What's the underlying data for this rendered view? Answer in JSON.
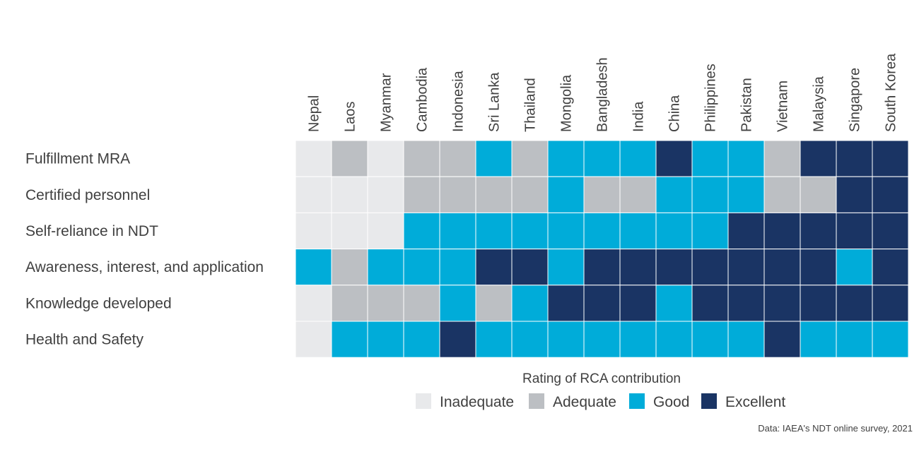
{
  "chart_data": {
    "type": "heatmap",
    "title": "",
    "columns": [
      "Nepal",
      "Laos",
      "Myanmar",
      "Cambodia",
      "Indonesia",
      "Sri Lanka",
      "Thailand",
      "Mongolia",
      "Bangladesh",
      "India",
      "China",
      "Philippines",
      "Pakistan",
      "Vietnam",
      "Malaysia",
      "Singapore",
      "South Korea"
    ],
    "rows": [
      "Fulfillment MRA",
      "Certified personnel",
      "Self-reliance in NDT",
      "Awareness, interest, and application",
      "Knowledge developed",
      "Health and Safety"
    ],
    "levels": [
      "Inadequate",
      "Adequate",
      "Good",
      "Excellent"
    ],
    "level_colors": [
      "#e8e9eb",
      "#bcbfc3",
      "#00acd9",
      "#1a3464"
    ],
    "values": [
      [
        0,
        1,
        0,
        1,
        1,
        2,
        1,
        2,
        2,
        2,
        3,
        2,
        2,
        1,
        3,
        3,
        3
      ],
      [
        0,
        0,
        0,
        1,
        1,
        1,
        1,
        2,
        1,
        1,
        2,
        2,
        2,
        1,
        1,
        3,
        3
      ],
      [
        0,
        0,
        0,
        2,
        2,
        2,
        2,
        2,
        2,
        2,
        2,
        2,
        3,
        3,
        3,
        3,
        3
      ],
      [
        2,
        1,
        2,
        2,
        2,
        3,
        3,
        2,
        3,
        3,
        3,
        3,
        3,
        3,
        3,
        2,
        3
      ],
      [
        0,
        1,
        1,
        1,
        2,
        1,
        2,
        3,
        3,
        3,
        2,
        3,
        3,
        3,
        3,
        3,
        3
      ],
      [
        0,
        2,
        2,
        2,
        3,
        2,
        2,
        2,
        2,
        2,
        2,
        2,
        2,
        3,
        2,
        2,
        2
      ]
    ],
    "legend": {
      "title": "Rating of RCA contribution",
      "placement": "bottom-center"
    },
    "source_note": "Data: IAEA's NDT online survey, 2021"
  }
}
